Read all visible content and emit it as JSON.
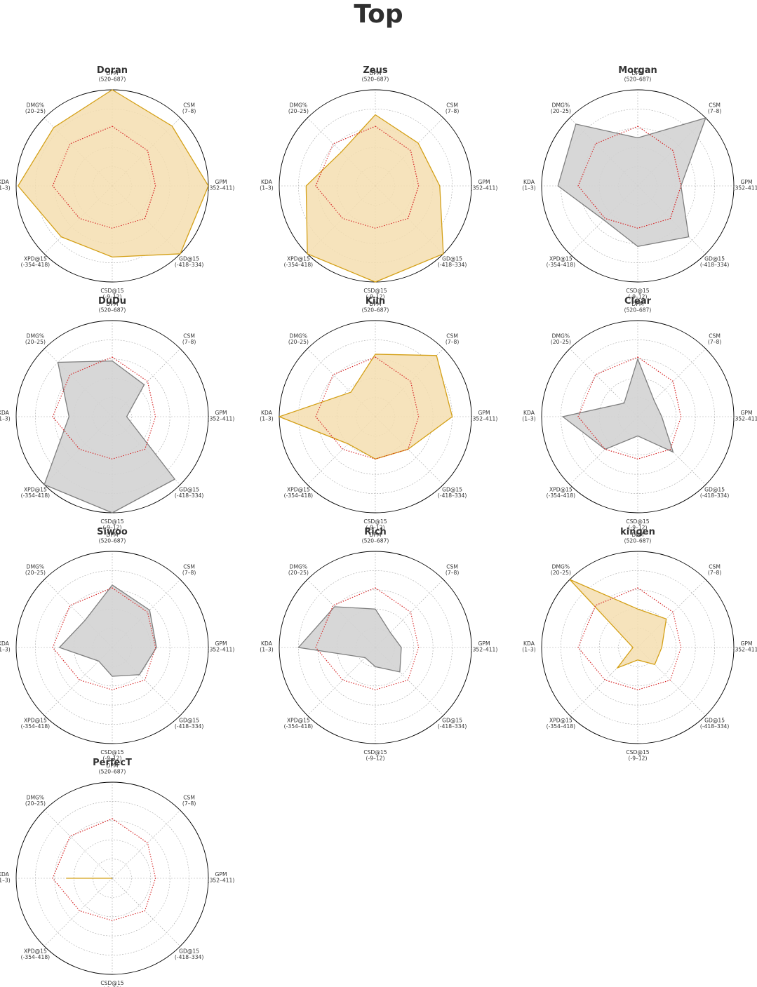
{
  "title": "Top",
  "axes": [
    {
      "name": "DPM",
      "range": "(520–687)"
    },
    {
      "name": "CSM",
      "range": "(7–8)"
    },
    {
      "name": "GPM",
      "range": "(352–411)"
    },
    {
      "name": "GD@15",
      "range": "(-418–334)"
    },
    {
      "name": "CSD@15",
      "range": "(-9–12)"
    },
    {
      "name": "XPD@15",
      "range": "(-354–418)"
    },
    {
      "name": "KDA",
      "range": "(1–3)"
    },
    {
      "name": "DMG%",
      "range": "(20–25)"
    }
  ],
  "colors": {
    "positive_fill": "#f5deb0",
    "positive_edge": "#d4a017",
    "negative_fill": "#d3d3d3",
    "negative_edge": "#7f7f7f",
    "average_line": "#d62728",
    "grid": "#aaaaaa",
    "frame": "#000000"
  },
  "chart_data": {
    "type": "radar",
    "title": "Top",
    "scale": [
      0,
      1
    ],
    "grid_rings": [
      0.2,
      0.4,
      0.6,
      0.8,
      1.0
    ],
    "categories": [
      "DPM",
      "CSM",
      "GPM",
      "GD@15",
      "CSD@15",
      "XPD@15",
      "KDA",
      "DMG%"
    ],
    "average": [
      0.62,
      0.52,
      0.45,
      0.48,
      0.44,
      0.48,
      0.62,
      0.62
    ],
    "players": [
      {
        "name": "Doran",
        "style": "positive",
        "values": [
          1.0,
          0.88,
          1.0,
          1.0,
          0.74,
          0.75,
          0.98,
          0.86
        ]
      },
      {
        "name": "Zeus",
        "style": "positive",
        "values": [
          0.74,
          0.63,
          0.67,
          1.0,
          1.0,
          1.0,
          0.72,
          0.5
        ]
      },
      {
        "name": "Morgan",
        "style": "negative",
        "values": [
          0.5,
          1.0,
          0.45,
          0.75,
          0.63,
          0.5,
          0.83,
          0.91
        ]
      },
      {
        "name": "DuDu",
        "style": "negative",
        "values": [
          0.58,
          0.47,
          0.15,
          0.92,
          1.0,
          1.0,
          0.45,
          0.8
        ]
      },
      {
        "name": "Kiin",
        "style": "positive",
        "values": [
          0.65,
          0.9,
          0.8,
          0.48,
          0.44,
          0.4,
          1.0,
          0.36
        ]
      },
      {
        "name": "Clear",
        "style": "negative",
        "values": [
          0.6,
          0.24,
          0.25,
          0.52,
          0.2,
          0.48,
          0.78,
          0.2
        ]
      },
      {
        "name": "Siwoo",
        "style": "negative",
        "values": [
          0.65,
          0.55,
          0.46,
          0.4,
          0.3,
          0.2,
          0.55,
          0.4
        ]
      },
      {
        "name": "Rich",
        "style": "negative",
        "values": [
          0.4,
          0.22,
          0.27,
          0.36,
          0.2,
          0.15,
          0.8,
          0.6
        ]
      },
      {
        "name": "kingen",
        "style": "positive",
        "values": [
          0.4,
          0.42,
          0.25,
          0.25,
          0.13,
          0.3,
          0.05,
          1.0
        ]
      },
      {
        "name": "PerfecT",
        "style": "positive",
        "values": [
          0.0,
          0.0,
          0.0,
          0.0,
          0.0,
          0.0,
          0.48,
          0.0
        ]
      }
    ]
  }
}
